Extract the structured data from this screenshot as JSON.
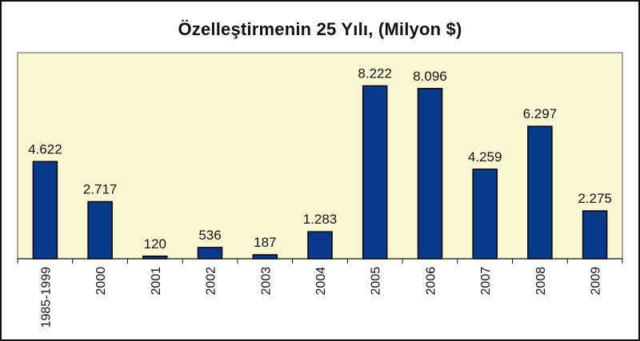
{
  "chart_data": {
    "type": "bar",
    "title": "Özelleştirmenin 25 Yılı, (Milyon $)",
    "categories": [
      "1985-1999",
      "2000",
      "2001",
      "2002",
      "2003",
      "2004",
      "2005",
      "2006",
      "2007",
      "2008",
      "2009"
    ],
    "values": [
      4622,
      2717,
      120,
      536,
      187,
      1283,
      8222,
      8096,
      4259,
      6297,
      2275
    ],
    "value_labels": [
      "4.622",
      "2.717",
      "120",
      "536",
      "187",
      "1.283",
      "8.222",
      "8.096",
      "4.259",
      "6.297",
      "2.275"
    ],
    "ylim": [
      0,
      9800
    ],
    "grid": false,
    "colors": {
      "bar": "#0a3a8c",
      "bar_edge": "#000000",
      "plot_bg": "#fbf7d2",
      "plot_border": "#555555"
    }
  }
}
